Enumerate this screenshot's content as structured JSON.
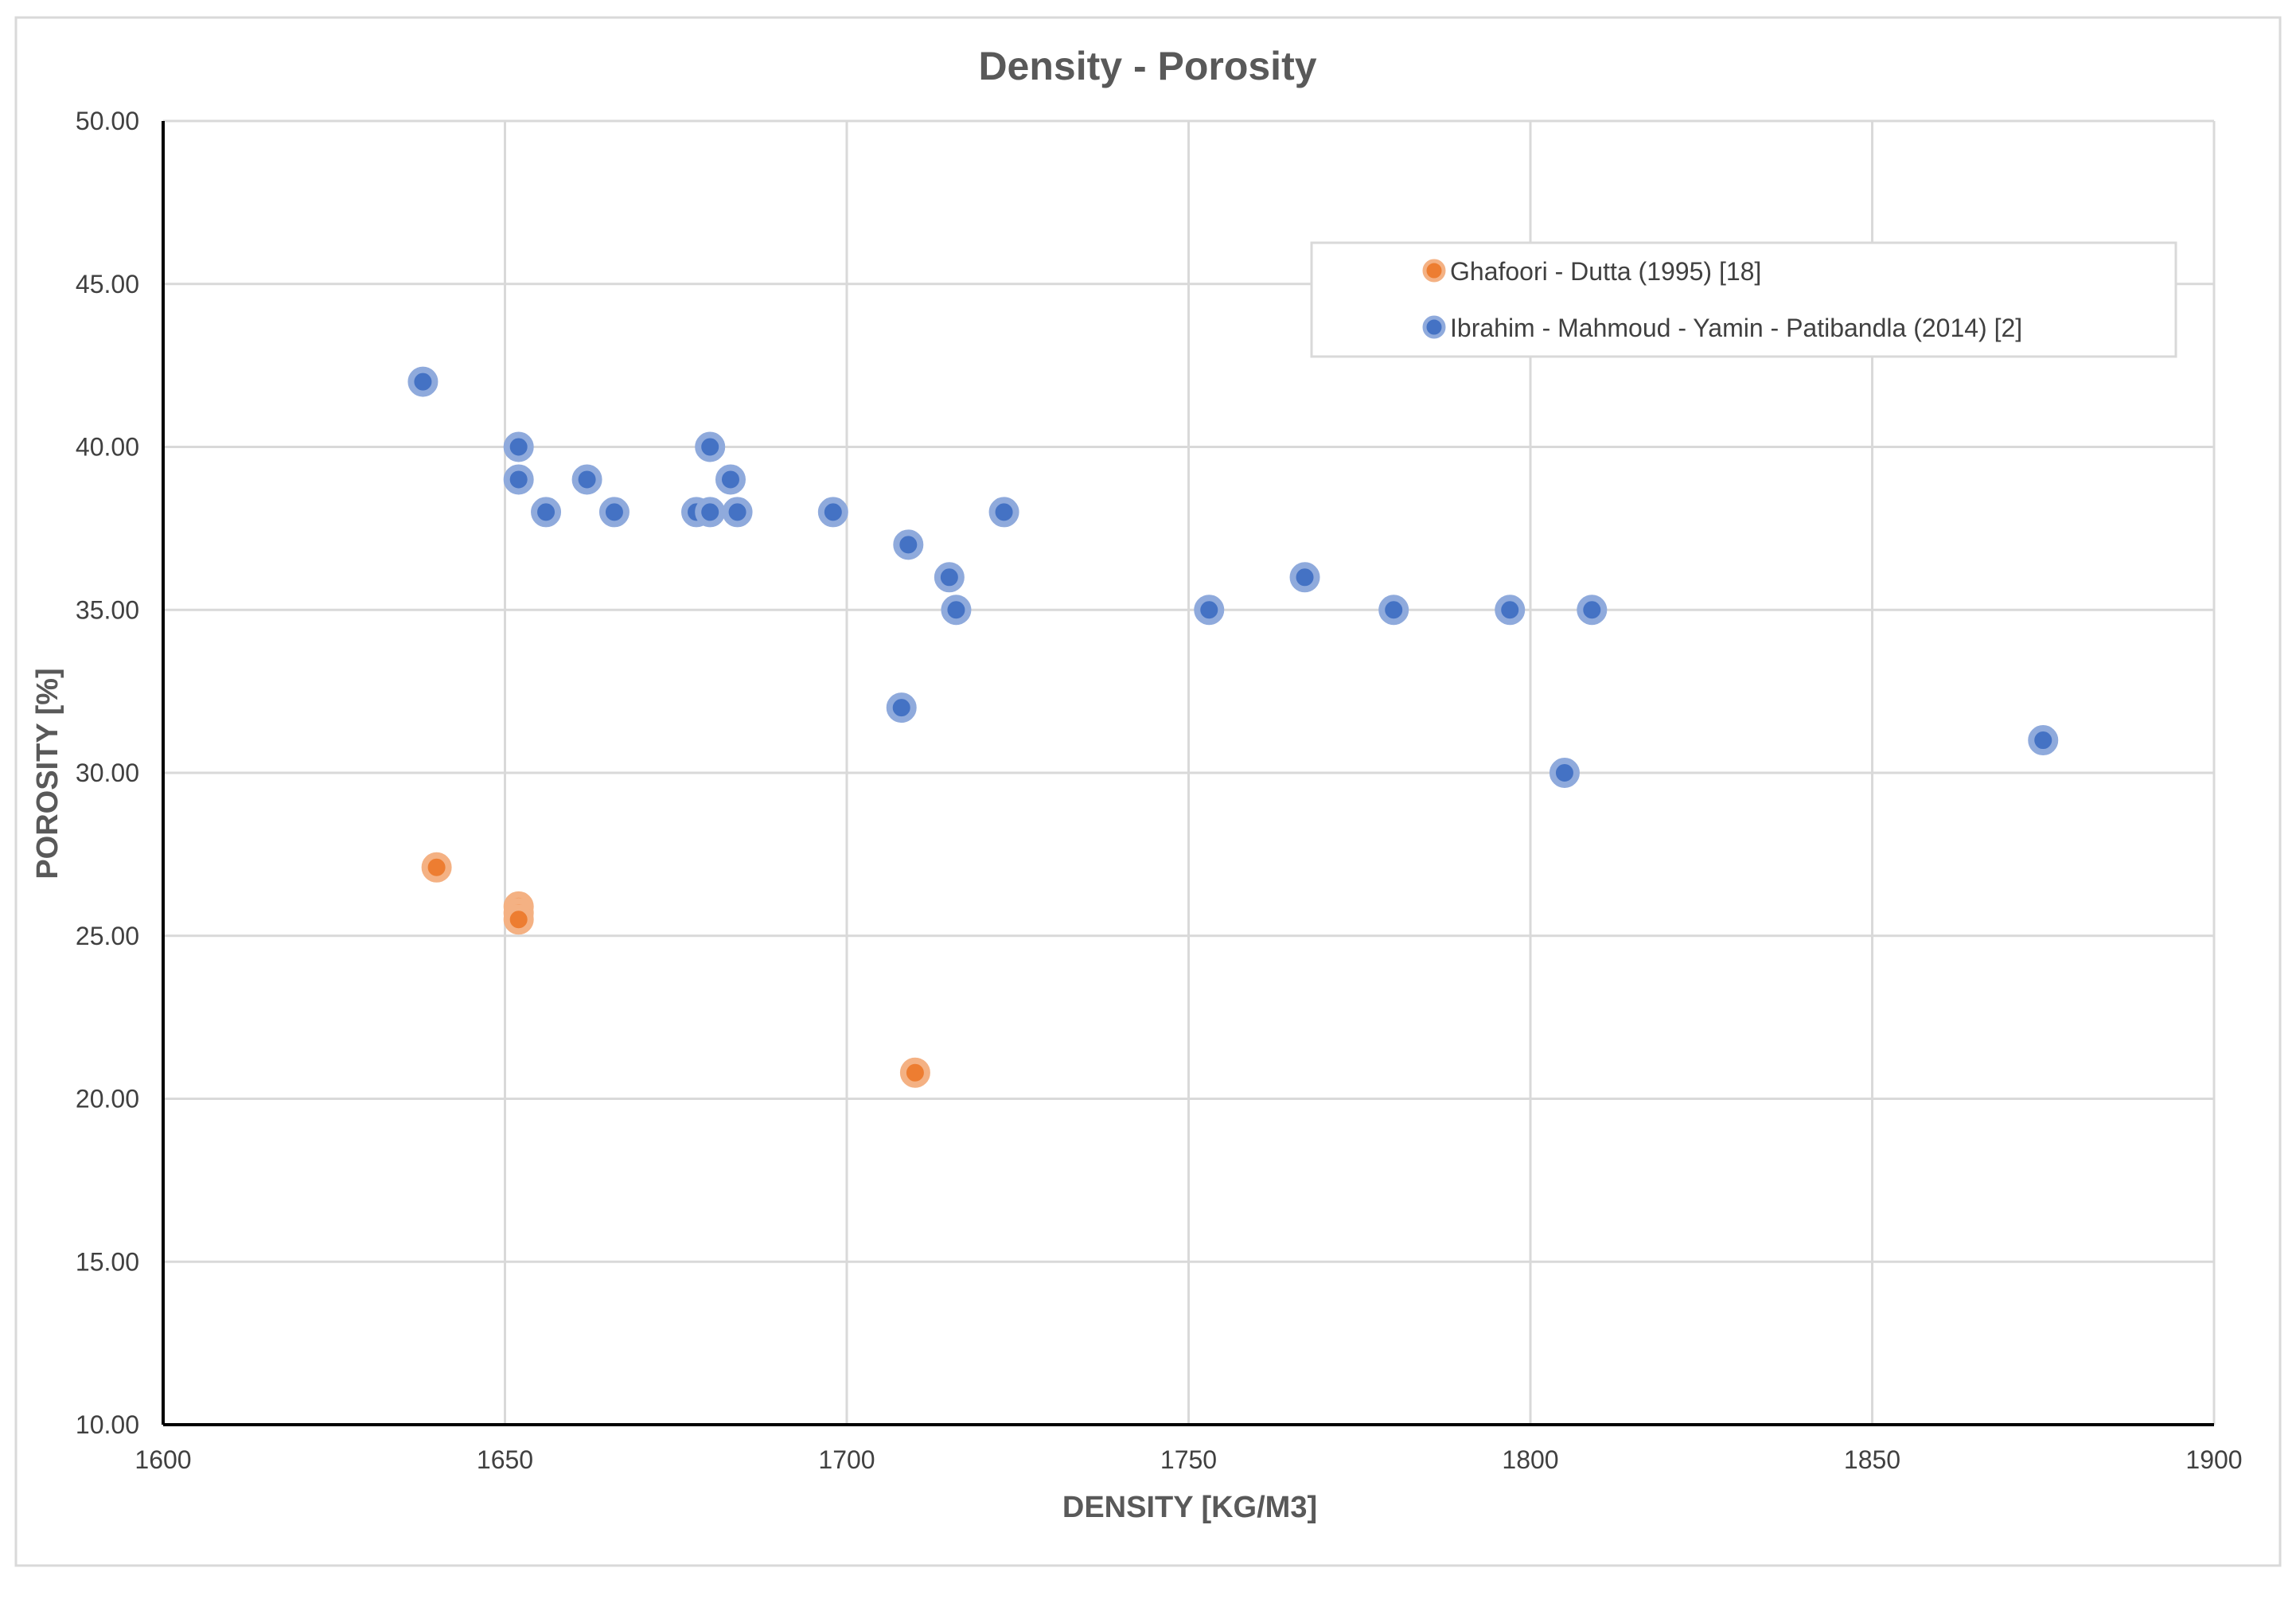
{
  "chart_data": {
    "type": "scatter",
    "title": "Density - Porosity",
    "xlabel": "DENSITY [KG/M3]",
    "ylabel": "POROSITY [%]",
    "xlim": [
      1600,
      1900
    ],
    "ylim": [
      10,
      50
    ],
    "x_ticks": [
      1600,
      1650,
      1700,
      1750,
      1800,
      1850,
      1900
    ],
    "y_ticks": [
      10,
      15,
      20,
      25,
      30,
      35,
      40,
      45,
      50
    ],
    "x_tick_labels": [
      "1600",
      "1650",
      "1700",
      "1750",
      "1800",
      "1850",
      "1900"
    ],
    "y_tick_labels": [
      "10.00",
      "15.00",
      "20.00",
      "25.00",
      "30.00",
      "35.00",
      "40.00",
      "45.00",
      "50.00"
    ],
    "grid": true,
    "legend_position": "top-right",
    "series": [
      {
        "name": "Ghafoori - Dutta (1995) [18]",
        "color": "#ED7D31",
        "points": [
          [
            1640,
            27.1
          ],
          [
            1652,
            25.9
          ],
          [
            1652,
            25.7
          ],
          [
            1652,
            25.5
          ],
          [
            1710,
            20.8
          ]
        ]
      },
      {
        "name": "Ibrahim - Mahmoud - Yamin - Patibandla (2014) [2]",
        "color": "#4472C4",
        "points": [
          [
            1638,
            42
          ],
          [
            1652,
            40
          ],
          [
            1652,
            39
          ],
          [
            1656,
            38
          ],
          [
            1662,
            39
          ],
          [
            1666,
            38
          ],
          [
            1678,
            38
          ],
          [
            1680,
            38
          ],
          [
            1680,
            40
          ],
          [
            1683,
            39
          ],
          [
            1684,
            38
          ],
          [
            1698,
            38
          ],
          [
            1708,
            32
          ],
          [
            1709,
            37
          ],
          [
            1715,
            36
          ],
          [
            1716,
            35
          ],
          [
            1723,
            38
          ],
          [
            1753,
            35
          ],
          [
            1767,
            36
          ],
          [
            1780,
            35
          ],
          [
            1797,
            35
          ],
          [
            1805,
            30
          ],
          [
            1809,
            35
          ],
          [
            1875,
            31
          ]
        ]
      }
    ]
  }
}
